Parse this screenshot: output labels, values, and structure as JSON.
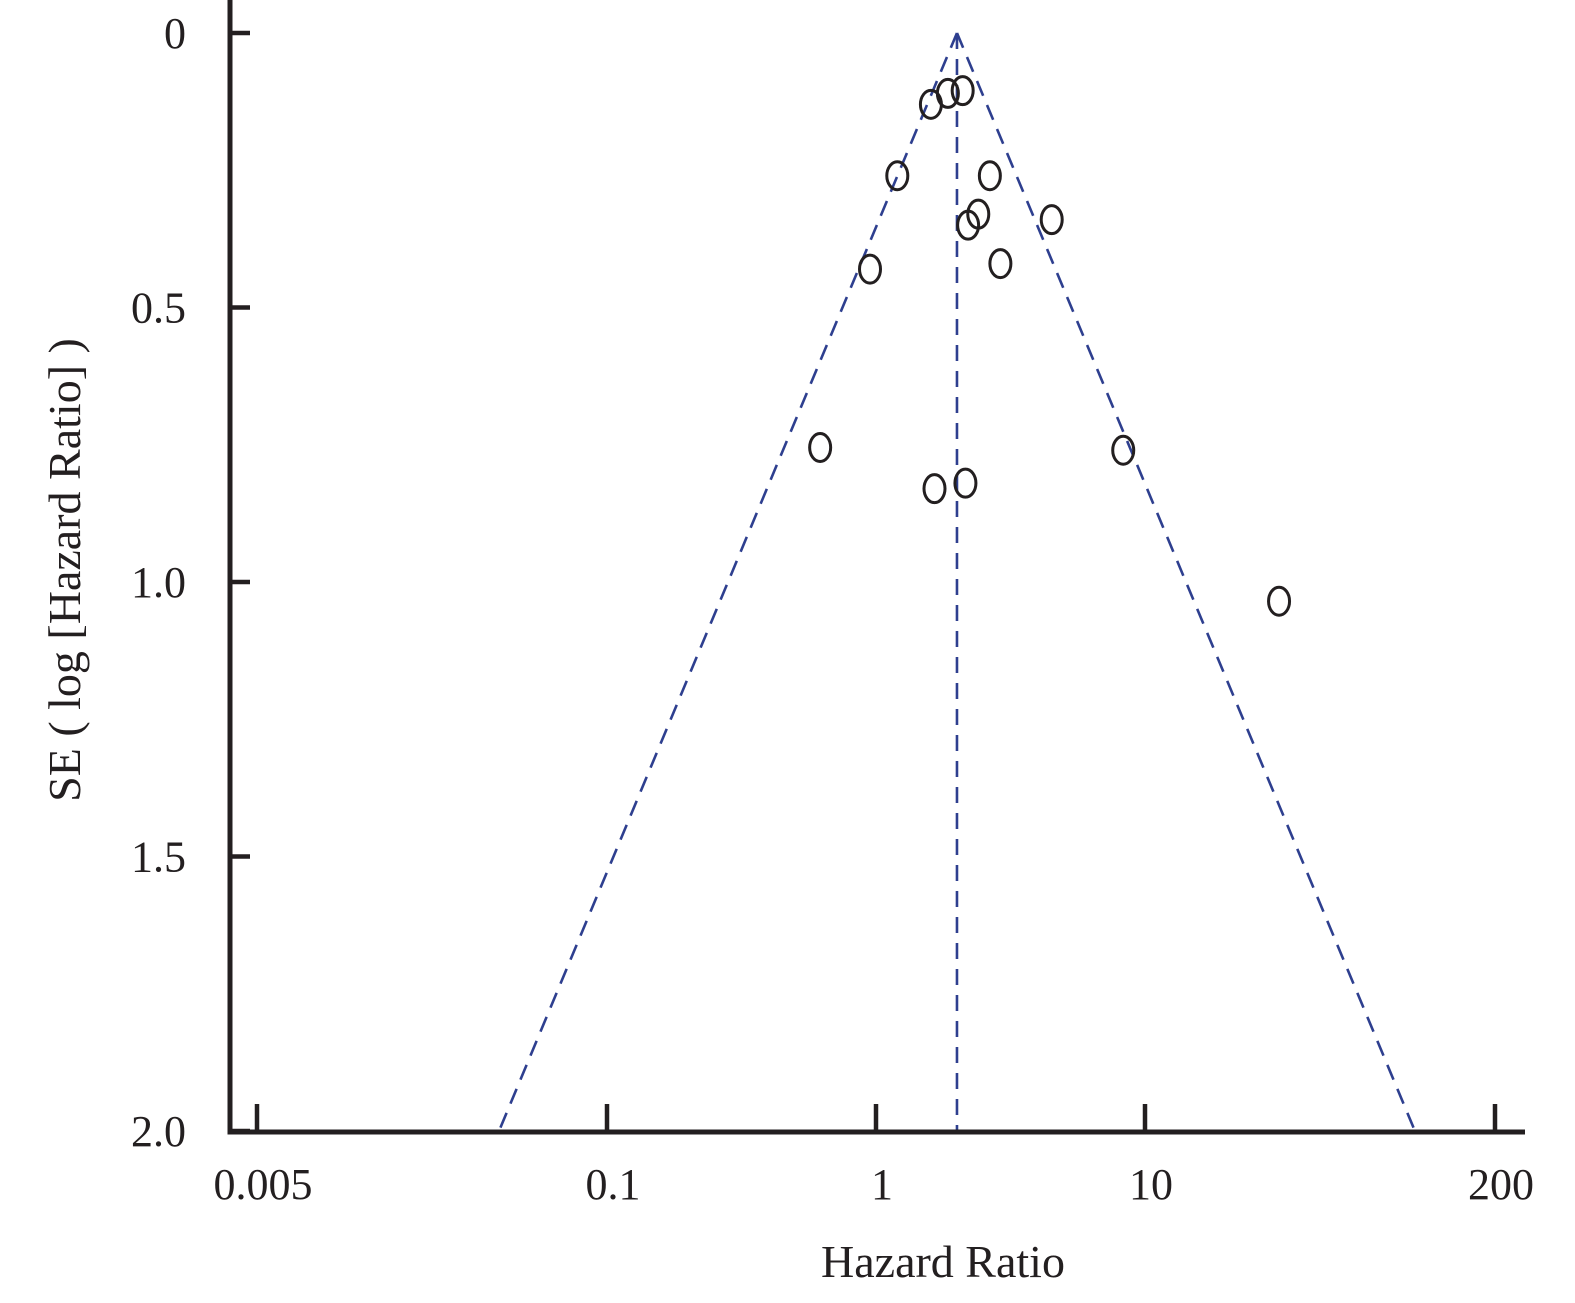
{
  "chart_data": {
    "type": "scatter",
    "subtype": "funnel-plot",
    "xlabel": "Hazard Ratio",
    "ylabel": "SE ( log [Hazard Ratio] )",
    "x_scale": "log",
    "xlim": [
      0.005,
      200
    ],
    "ylim": [
      2.0,
      0
    ],
    "y_inverted": true,
    "x_ticks": [
      0.005,
      0.1,
      1,
      10,
      200
    ],
    "x_tick_labels": [
      "0.005",
      "0.1",
      "1",
      "10",
      "200"
    ],
    "y_ticks": [
      0,
      0.5,
      1.0,
      1.5,
      2.0
    ],
    "y_tick_labels": [
      "0",
      "0.5",
      "1.0",
      "1.5",
      "2.0"
    ],
    "pooled_hr": 2.0,
    "funnel_z": 1.96,
    "grid": false,
    "colors": {
      "points": "#231f20",
      "funnel": "#2e3f8f",
      "axes": "#231f20"
    },
    "points": [
      {
        "hr": 1.85,
        "se": 0.11
      },
      {
        "hr": 2.1,
        "se": 0.105
      },
      {
        "hr": 1.6,
        "se": 0.13
      },
      {
        "hr": 1.2,
        "se": 0.26
      },
      {
        "hr": 2.65,
        "se": 0.26
      },
      {
        "hr": 2.4,
        "se": 0.33
      },
      {
        "hr": 2.2,
        "se": 0.35
      },
      {
        "hr": 4.5,
        "se": 0.34
      },
      {
        "hr": 0.95,
        "se": 0.43
      },
      {
        "hr": 2.9,
        "se": 0.42
      },
      {
        "hr": 0.62,
        "se": 0.755
      },
      {
        "hr": 8.3,
        "se": 0.76
      },
      {
        "hr": 2.15,
        "se": 0.82
      },
      {
        "hr": 1.65,
        "se": 0.83
      },
      {
        "hr": 31.5,
        "se": 1.035
      }
    ]
  }
}
